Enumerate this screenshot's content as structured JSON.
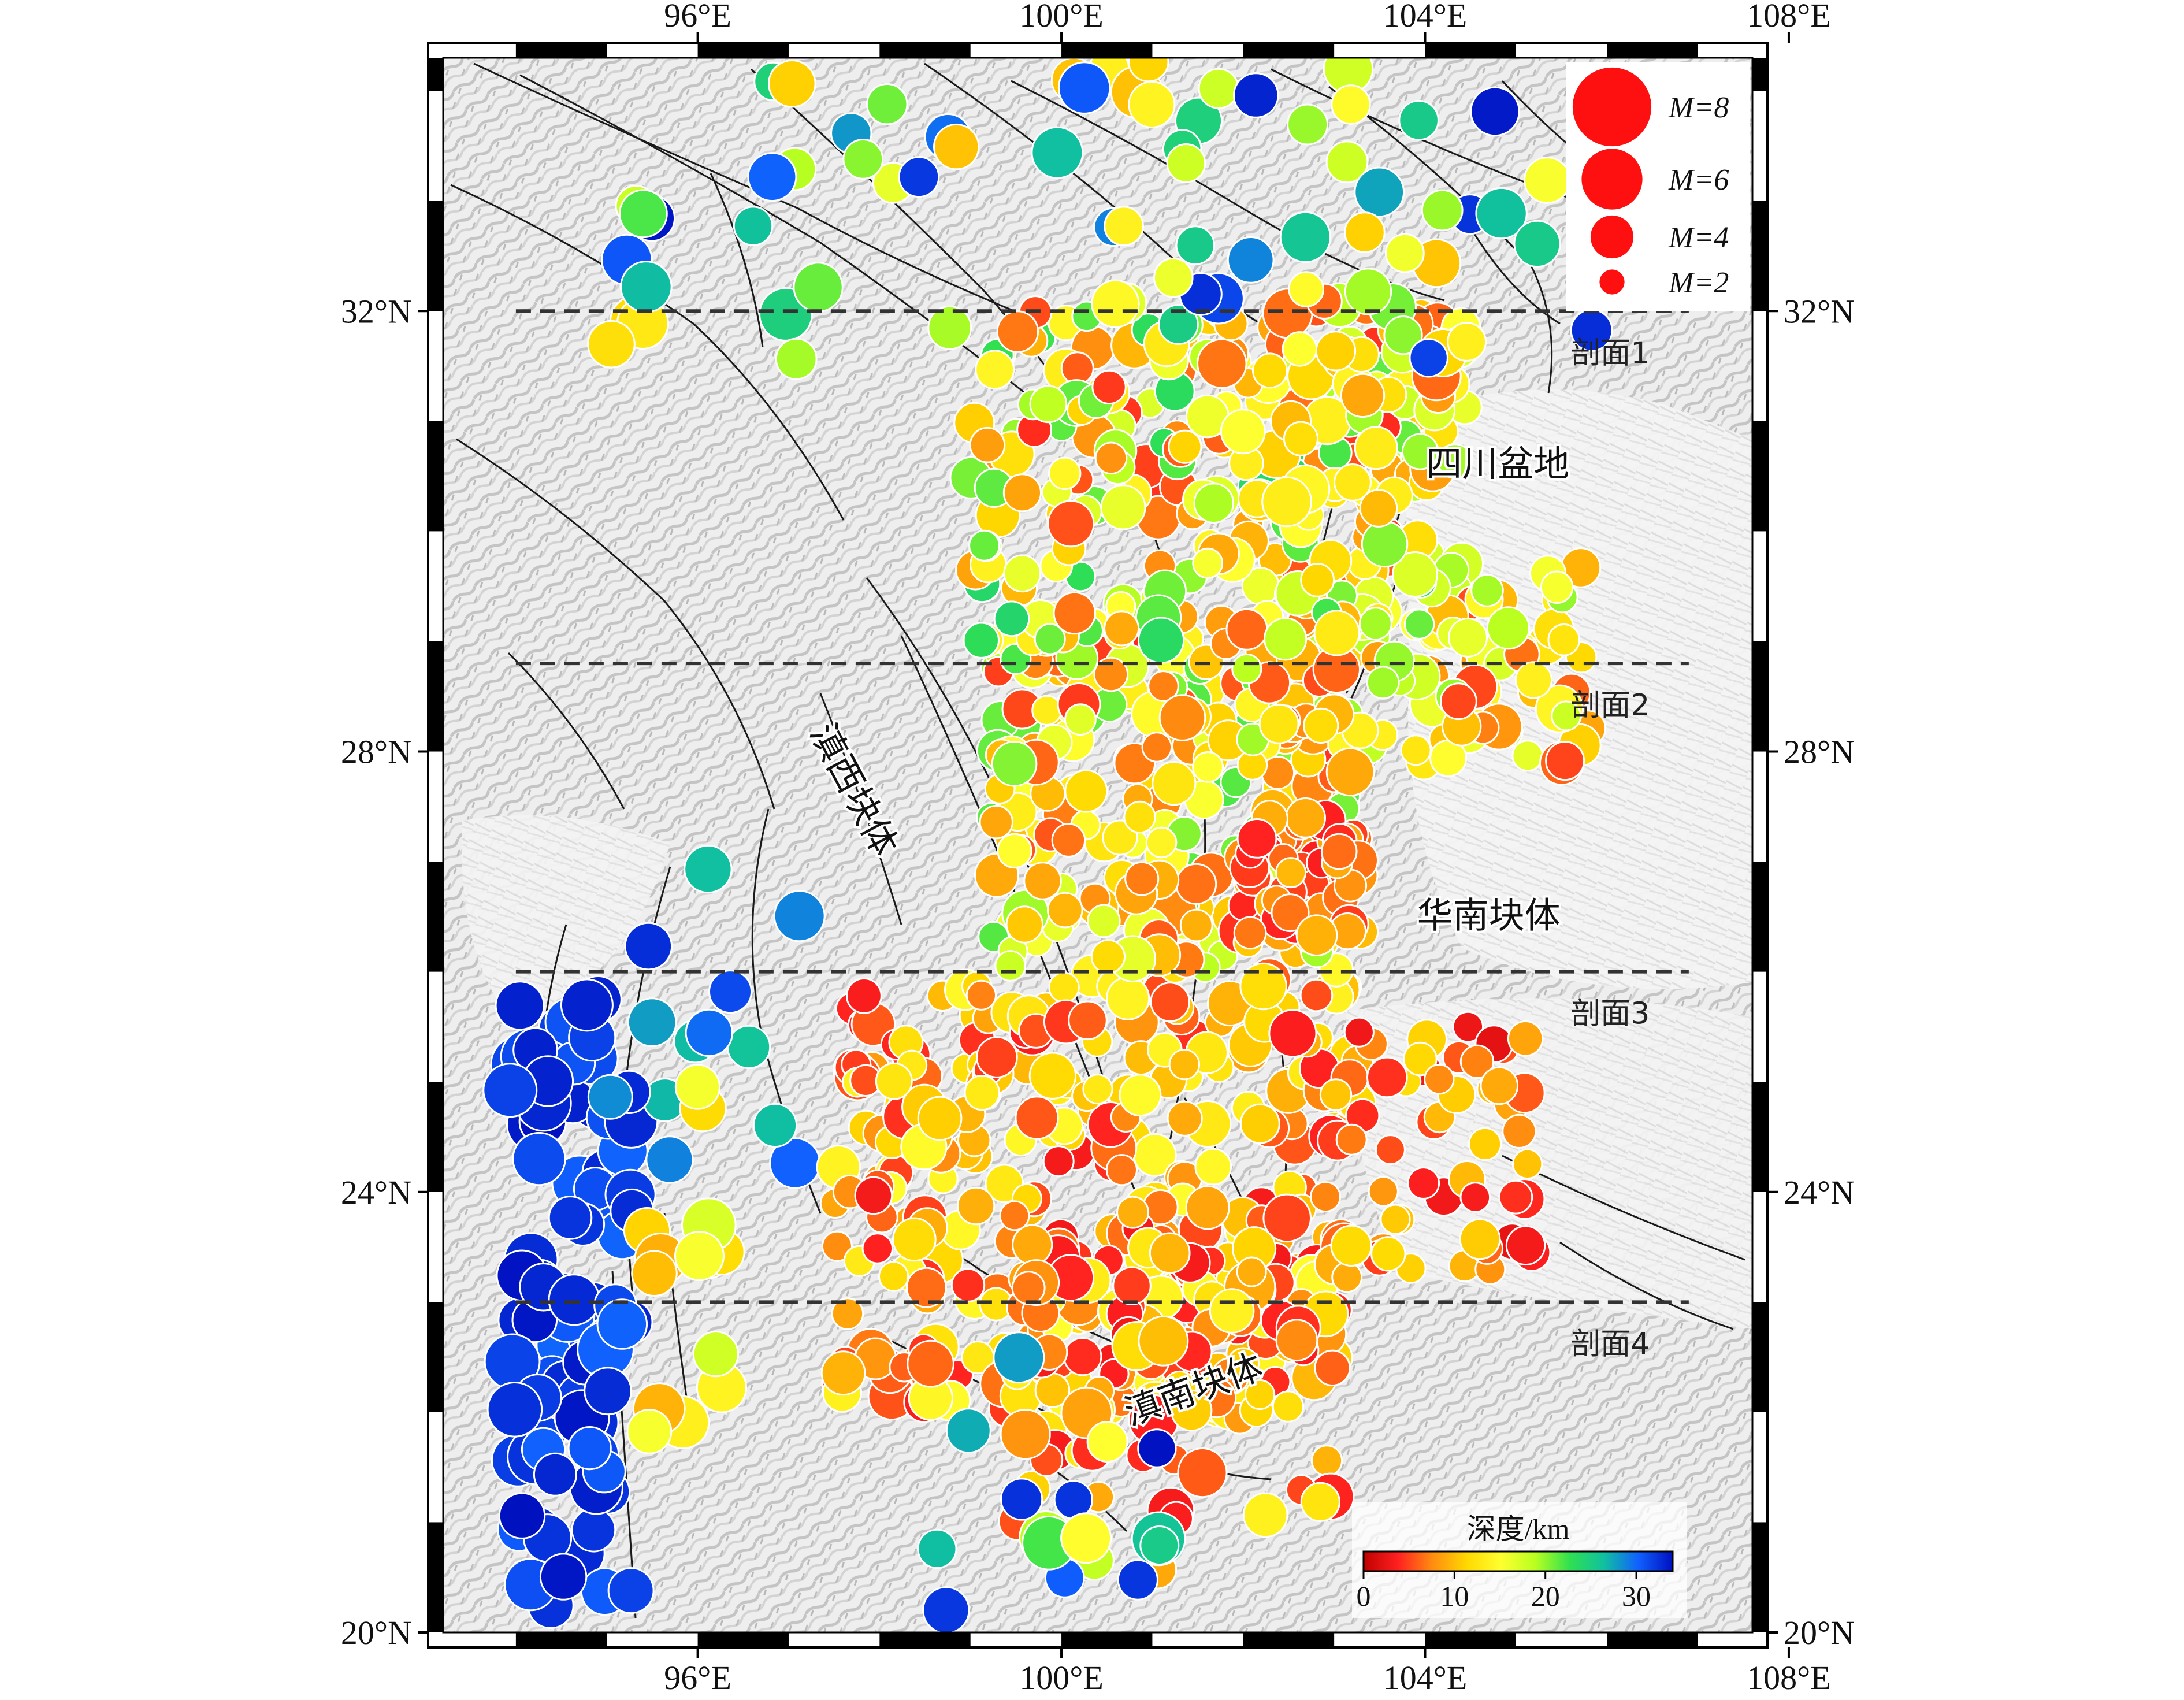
{
  "map": {
    "lon_range": [
      93.2,
      107.6
    ],
    "lat_range": [
      20,
      34.3
    ],
    "lon_ticks": [
      {
        "value": 96,
        "label": "96°E"
      },
      {
        "value": 100,
        "label": "100°E"
      },
      {
        "value": 104,
        "label": "104°E"
      },
      {
        "value": 108,
        "label": "108°E"
      }
    ],
    "lat_ticks": [
      {
        "value": 20,
        "label": "20°N"
      },
      {
        "value": 24,
        "label": "24°N"
      },
      {
        "value": 28,
        "label": "28°N"
      },
      {
        "value": 32,
        "label": "32°N"
      }
    ],
    "basemap": "grey-shaded-relief",
    "fault-color": "#1a1a1a"
  },
  "regions": [
    {
      "name": "sichuan-basin-label",
      "text": "四川盆地",
      "lon": 104.8,
      "lat": 30.5,
      "rotate": 0
    },
    {
      "name": "south-china-block-label",
      "text": "华南块体",
      "lon": 104.7,
      "lat": 26.4,
      "rotate": 0
    },
    {
      "name": "west-yunnan-block-label",
      "text": "滇西块体",
      "lon": 97.6,
      "lat": 27.6,
      "rotate": 62
    },
    {
      "name": "south-yunnan-block-label",
      "text": "滇南块体",
      "lon": 101.5,
      "lat": 22.1,
      "rotate": -20
    }
  ],
  "profiles": [
    {
      "name": "profile-1",
      "label": "剖面1",
      "lat": 32.0,
      "lon_start": 94.0,
      "lon_end": 106.9
    },
    {
      "name": "profile-2",
      "label": "剖面2",
      "lat": 28.8,
      "lon_start": 94.0,
      "lon_end": 106.9
    },
    {
      "name": "profile-3",
      "label": "剖面3",
      "lat": 26.0,
      "lon_start": 94.0,
      "lon_end": 106.9
    },
    {
      "name": "profile-4",
      "label": "剖面4",
      "lat": 23.0,
      "lon_start": 94.0,
      "lon_end": 106.9
    }
  ],
  "legend": {
    "color": "#ff1010",
    "items": [
      {
        "mag": 8,
        "label": "M=8"
      },
      {
        "mag": 6,
        "label": "M=6"
      },
      {
        "mag": 4,
        "label": "M=4"
      },
      {
        "mag": 2,
        "label": "M=2"
      }
    ]
  },
  "colorbar": {
    "title": "深度/km",
    "ticks": [
      0,
      10,
      20,
      30
    ],
    "range": [
      0,
      34
    ],
    "stops": [
      "#c00000",
      "#ff2020",
      "#ff8c10",
      "#ffd800",
      "#ffff30",
      "#b8ff20",
      "#30e050",
      "#10c0a0",
      "#1060ff",
      "#0010c0"
    ]
  },
  "events": {
    "note_clusters": [
      {
        "lon": [
          93.9,
          95.3
        ],
        "lat": [
          20.2,
          25.8
        ],
        "depth": [
          30,
          34
        ],
        "mag": [
          4.0,
          5.6
        ],
        "n": 90
      },
      {
        "lon": [
          95.0,
          97.3
        ],
        "lat": [
          24.0,
          27.2
        ],
        "depth": [
          26,
          34
        ],
        "mag": [
          4.0,
          5.0
        ],
        "n": 14
      },
      {
        "lon": [
          95.3,
          96.3
        ],
        "lat": [
          21.8,
          25.2
        ],
        "depth": [
          8,
          18
        ],
        "mag": [
          4.0,
          5.4
        ],
        "n": 14
      },
      {
        "lon": [
          97.5,
          103.2
        ],
        "lat": [
          22.0,
          26.0
        ],
        "depth": [
          3,
          15
        ],
        "mag": [
          2.5,
          4.6
        ],
        "n": 340
      },
      {
        "lon": [
          99.3,
          103.0
        ],
        "lat": [
          21.0,
          23.5
        ],
        "depth": [
          3,
          14
        ],
        "mag": [
          2.5,
          5.0
        ],
        "n": 80
      },
      {
        "lon": [
          103.0,
          105.2
        ],
        "lat": [
          23.2,
          25.5
        ],
        "depth": [
          2,
          12
        ],
        "mag": [
          2.5,
          3.8
        ],
        "n": 55
      },
      {
        "lon": [
          99.2,
          103.2
        ],
        "lat": [
          26.0,
          29.2
        ],
        "depth": [
          4,
          22
        ],
        "mag": [
          2.5,
          4.5
        ],
        "n": 230
      },
      {
        "lon": [
          102.0,
          103.3
        ],
        "lat": [
          26.3,
          27.4
        ],
        "depth": [
          3,
          10
        ],
        "mag": [
          2.5,
          3.8
        ],
        "n": 70
      },
      {
        "lon": [
          102.0,
          105.8
        ],
        "lat": [
          27.8,
          29.8
        ],
        "depth": [
          5,
          20
        ],
        "mag": [
          2.5,
          4.6
        ],
        "n": 120
      },
      {
        "lon": [
          99.0,
          104.2
        ],
        "lat": [
          29.0,
          32.0
        ],
        "depth": [
          4,
          24
        ],
        "mag": [
          2.5,
          4.5
        ],
        "n": 190
      },
      {
        "lon": [
          101.5,
          104.5
        ],
        "lat": [
          30.2,
          32.2
        ],
        "depth": [
          6,
          20
        ],
        "mag": [
          3.0,
          4.8
        ],
        "n": 60
      },
      {
        "lon": [
          95.0,
          106.0
        ],
        "lat": [
          31.5,
          34.3
        ],
        "depth": [
          10,
          34
        ],
        "mag": [
          3.5,
          5.2
        ],
        "n": 70
      },
      {
        "lon": [
          98.5,
          101.5
        ],
        "lat": [
          20.2,
          22.5
        ],
        "depth": [
          8,
          34
        ],
        "mag": [
          3.5,
          5.3
        ],
        "n": 18
      }
    ]
  }
}
